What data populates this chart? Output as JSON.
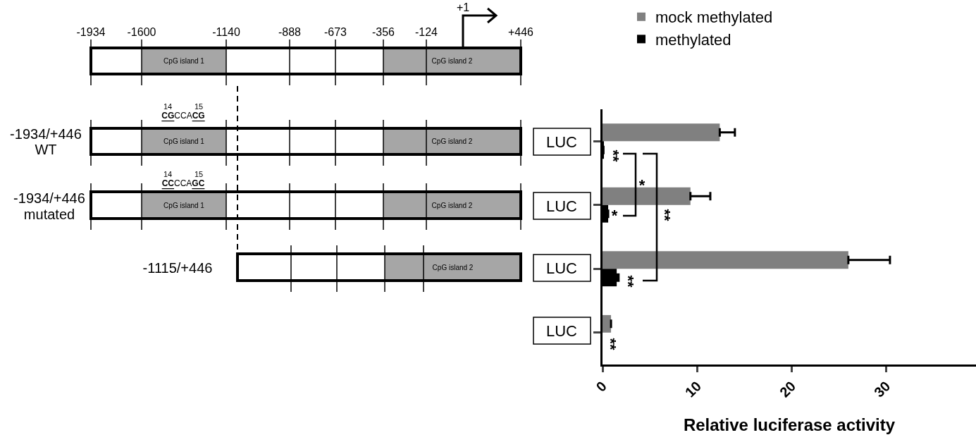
{
  "chart_data": {
    "type": "bar",
    "orientation": "horizontal",
    "categories": [
      null,
      null,
      null,
      null
    ],
    "series": [
      {
        "name": "mock methylated",
        "color": "#808080",
        "values": [
          12.4,
          9.3,
          26.0,
          0.9
        ],
        "errors": [
          [
            12.4,
            14.0
          ],
          [
            9.3,
            11.4
          ],
          [
            26.0,
            30.4
          ],
          null
        ]
      },
      {
        "name": "methylated",
        "color": "#000000",
        "values": [
          0.1,
          0.6,
          1.5,
          null
        ],
        "errors": [
          null,
          null,
          [
            1.5,
            1.7
          ],
          null
        ]
      }
    ],
    "xlabel": "Relative luciferase activity",
    "xlim": [
      0,
      39.5
    ],
    "xticks": [
      0,
      10,
      20,
      30
    ],
    "legend": "top",
    "grid": false,
    "annotations": [
      "-1934",
      "-1600",
      "-1140",
      "-888",
      "-673",
      "-356",
      "-124",
      "+446",
      "+1",
      "CpG island 1",
      "CpG island 2",
      "14",
      "15",
      "CGCCACG",
      "CpG island 1",
      "CpG island 2",
      "14",
      "15",
      "CCCCAGC",
      "CpG island 1",
      "CpG island 2",
      "CpG island 2",
      "LUC",
      "LUC",
      "LUC",
      "LUC",
      "**",
      "*",
      "*",
      "**",
      "**",
      "**",
      "-1934/+446",
      "WT",
      "-1934/+446",
      "mutated",
      "-1115/+446"
    ]
  }
}
